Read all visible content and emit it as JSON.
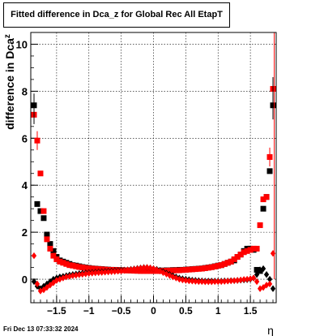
{
  "title": "Fitted difference in Dca_z  for Global Rec All EtapT",
  "footer": "Fri Dec 13 07:33:32 2024",
  "chart_data": {
    "type": "scatter",
    "title": "Fitted difference in Dca_z  for Global Rec All EtapT",
    "xlabel": "η",
    "ylabel": "difference in Dca_z",
    "xlim": [
      -1.9,
      1.9
    ],
    "ylim": [
      -1.0,
      10.5
    ],
    "grid": true,
    "x_ticks": [
      -1.5,
      -1,
      -0.5,
      0,
      0.5,
      1,
      1.5
    ],
    "x_tick_labels": [
      "−1.5",
      "−1",
      "−0.5",
      "0",
      "0.5",
      "1",
      "1.5"
    ],
    "y_ticks": [
      0,
      2,
      4,
      6,
      8,
      10
    ],
    "y_tick_labels": [
      "0",
      "2",
      "4",
      "6",
      "8",
      "10"
    ],
    "series": [
      {
        "color": "#000000",
        "marker": "square",
        "x": [
          -1.85,
          -1.8,
          -1.75,
          -1.7,
          -1.65,
          -1.6,
          -1.55,
          -1.5,
          -1.45,
          -1.4,
          -1.35,
          -1.3,
          -1.25,
          -1.2,
          -1.15,
          -1.1,
          -1.05,
          -1.0,
          -0.95,
          -0.9,
          -0.85,
          -0.8,
          -0.75,
          -0.7,
          -0.65,
          -0.6,
          -0.55,
          -0.5,
          -0.45,
          -0.4,
          -0.35,
          -0.3,
          -0.25,
          -0.2,
          -0.15,
          -0.1,
          -0.05,
          0.0,
          0.05,
          0.1,
          0.15,
          0.2,
          0.25,
          0.3,
          0.35,
          0.4,
          0.45,
          0.5,
          0.55,
          0.6,
          0.65,
          0.7,
          0.75,
          0.8,
          0.85,
          0.9,
          0.95,
          1.0,
          1.05,
          1.1,
          1.15,
          1.2,
          1.25,
          1.3,
          1.35,
          1.4,
          1.45,
          1.5,
          1.55,
          1.6,
          1.65,
          1.7,
          1.75,
          1.8,
          1.85
        ],
        "y": [
          7.4,
          3.2,
          2.9,
          2.6,
          1.9,
          1.5,
          1.2,
          0.95,
          0.8,
          0.75,
          0.7,
          0.65,
          0.6,
          0.58,
          0.55,
          0.52,
          0.5,
          0.48,
          0.46,
          0.45,
          0.44,
          0.43,
          0.42,
          0.41,
          0.4,
          0.4,
          0.39,
          0.39,
          0.38,
          0.38,
          0.37,
          0.37,
          0.36,
          0.36,
          0.36,
          0.36,
          0.36,
          0.36,
          0.36,
          0.37,
          0.37,
          0.38,
          0.38,
          0.39,
          0.39,
          0.4,
          0.4,
          0.41,
          0.42,
          0.43,
          0.44,
          0.45,
          0.46,
          0.48,
          0.5,
          0.52,
          0.55,
          0.58,
          0.6,
          0.65,
          0.7,
          0.75,
          0.8,
          0.95,
          1.05,
          1.2,
          1.3,
          1.3,
          1.25,
          0.4,
          0.35,
          3.0,
          3.5,
          4.6,
          7.4
        ]
      },
      {
        "color": "#ff0000",
        "marker": "square",
        "x": [
          -1.85,
          -1.8,
          -1.75,
          -1.7,
          -1.65,
          -1.6,
          -1.55,
          -1.5,
          -1.45,
          -1.4,
          -1.35,
          -1.3,
          -1.25,
          -1.2,
          -1.15,
          -1.1,
          -1.05,
          -1.0,
          -0.95,
          -0.9,
          -0.85,
          -0.8,
          -0.75,
          -0.7,
          -0.65,
          -0.6,
          -0.55,
          -0.5,
          -0.45,
          -0.4,
          -0.35,
          -0.3,
          -0.25,
          -0.2,
          -0.15,
          -0.1,
          -0.05,
          0.0,
          0.05,
          0.1,
          0.15,
          0.2,
          0.25,
          0.3,
          0.35,
          0.4,
          0.45,
          0.5,
          0.55,
          0.6,
          0.65,
          0.7,
          0.75,
          0.8,
          0.85,
          0.9,
          0.95,
          1.0,
          1.05,
          1.1,
          1.15,
          1.2,
          1.25,
          1.3,
          1.35,
          1.4,
          1.45,
          1.5,
          1.55,
          1.6,
          1.65,
          1.7,
          1.75,
          1.8,
          1.85
        ],
        "y": [
          7.0,
          5.9,
          4.5,
          2.9,
          1.7,
          1.3,
          1.0,
          0.85,
          0.75,
          0.7,
          0.65,
          0.6,
          0.58,
          0.55,
          0.52,
          0.5,
          0.48,
          0.46,
          0.45,
          0.44,
          0.43,
          0.42,
          0.41,
          0.4,
          0.4,
          0.39,
          0.39,
          0.38,
          0.38,
          0.37,
          0.37,
          0.36,
          0.36,
          0.35,
          0.35,
          0.35,
          0.35,
          0.35,
          0.35,
          0.35,
          0.36,
          0.36,
          0.37,
          0.37,
          0.38,
          0.38,
          0.39,
          0.4,
          0.41,
          0.42,
          0.43,
          0.44,
          0.45,
          0.47,
          0.49,
          0.51,
          0.54,
          0.57,
          0.6,
          0.65,
          0.7,
          0.75,
          0.85,
          0.95,
          1.05,
          1.15,
          1.2,
          1.25,
          1.3,
          1.3,
          2.3,
          3.4,
          3.5,
          5.2,
          8.1
        ]
      },
      {
        "color": "#000000",
        "marker": "diamond",
        "x": [
          -1.85,
          -1.8,
          -1.75,
          -1.7,
          -1.65,
          -1.6,
          -1.55,
          -1.5,
          -1.45,
          -1.4,
          -1.35,
          -1.3,
          -1.25,
          -1.2,
          -1.15,
          -1.1,
          -1.05,
          -1.0,
          -0.95,
          -0.9,
          -0.85,
          -0.8,
          -0.75,
          -0.7,
          -0.65,
          -0.6,
          -0.55,
          -0.5,
          -0.45,
          -0.4,
          -0.35,
          -0.3,
          -0.25,
          -0.2,
          -0.15,
          -0.1,
          -0.05,
          0.0,
          0.05,
          0.1,
          0.15,
          0.2,
          0.25,
          0.3,
          0.35,
          0.4,
          0.45,
          0.5,
          0.55,
          0.6,
          0.65,
          0.7,
          0.75,
          0.8,
          0.85,
          0.9,
          0.95,
          1.0,
          1.05,
          1.1,
          1.15,
          1.2,
          1.25,
          1.3,
          1.35,
          1.4,
          1.45,
          1.5,
          1.55,
          1.6,
          1.65,
          1.7,
          1.75,
          1.8,
          1.85
        ],
        "y": [
          -0.1,
          -0.3,
          -0.4,
          -0.3,
          -0.2,
          -0.1,
          0.0,
          0.05,
          0.1,
          0.12,
          0.15,
          0.18,
          0.2,
          0.22,
          0.24,
          0.26,
          0.27,
          0.28,
          0.29,
          0.3,
          0.31,
          0.32,
          0.33,
          0.34,
          0.35,
          0.36,
          0.37,
          0.38,
          0.39,
          0.4,
          0.42,
          0.44,
          0.46,
          0.48,
          0.5,
          0.5,
          0.48,
          0.45,
          0.42,
          0.38,
          0.32,
          0.26,
          0.2,
          0.15,
          0.1,
          0.05,
          0.02,
          0.0,
          -0.02,
          -0.04,
          -0.05,
          -0.06,
          -0.07,
          -0.08,
          -0.08,
          -0.08,
          -0.08,
          -0.08,
          -0.08,
          -0.07,
          -0.07,
          -0.06,
          -0.06,
          -0.05,
          -0.04,
          -0.03,
          -0.02,
          0.0,
          0.05,
          0.2,
          0.4,
          0.45,
          0.2,
          0.0,
          -0.4
        ]
      },
      {
        "color": "#ff0000",
        "marker": "diamond",
        "x": [
          -1.85,
          -1.8,
          -1.75,
          -1.7,
          -1.65,
          -1.6,
          -1.55,
          -1.5,
          -1.45,
          -1.4,
          -1.35,
          -1.3,
          -1.25,
          -1.2,
          -1.15,
          -1.1,
          -1.05,
          -1.0,
          -0.95,
          -0.9,
          -0.85,
          -0.8,
          -0.75,
          -0.7,
          -0.65,
          -0.6,
          -0.55,
          -0.5,
          -0.45,
          -0.4,
          -0.35,
          -0.3,
          -0.25,
          -0.2,
          -0.15,
          -0.1,
          -0.05,
          0.0,
          0.05,
          0.1,
          0.15,
          0.2,
          0.25,
          0.3,
          0.35,
          0.4,
          0.45,
          0.5,
          0.55,
          0.6,
          0.65,
          0.7,
          0.75,
          0.8,
          0.85,
          0.9,
          0.95,
          1.0,
          1.05,
          1.1,
          1.15,
          1.2,
          1.25,
          1.3,
          1.35,
          1.4,
          1.45,
          1.5,
          1.55,
          1.6,
          1.65,
          1.7,
          1.75,
          1.8,
          1.85
        ],
        "y": [
          1.0,
          -0.2,
          -0.5,
          -0.45,
          -0.35,
          -0.25,
          -0.15,
          -0.05,
          0.0,
          0.05,
          0.1,
          0.12,
          0.15,
          0.17,
          0.19,
          0.21,
          0.23,
          0.25,
          0.26,
          0.27,
          0.28,
          0.29,
          0.3,
          0.31,
          0.32,
          0.33,
          0.34,
          0.35,
          0.37,
          0.39,
          0.41,
          0.43,
          0.45,
          0.47,
          0.49,
          0.5,
          0.48,
          0.45,
          0.4,
          0.35,
          0.28,
          0.22,
          0.16,
          0.1,
          0.05,
          0.0,
          -0.03,
          -0.05,
          -0.07,
          -0.08,
          -0.09,
          -0.1,
          -0.1,
          -0.11,
          -0.11,
          -0.11,
          -0.1,
          -0.1,
          -0.1,
          -0.09,
          -0.08,
          -0.07,
          -0.06,
          -0.05,
          -0.03,
          -0.01,
          0.0,
          0.02,
          0.05,
          -0.1,
          -0.4,
          -0.35,
          -0.25,
          -0.2,
          1.1
        ]
      }
    ]
  }
}
